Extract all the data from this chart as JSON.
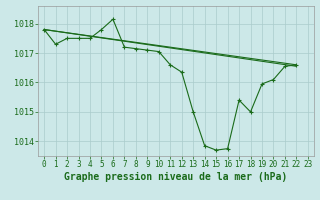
{
  "title": "Graphe pression niveau de la mer (hPa)",
  "bg_color": "#cce8e8",
  "grid_color": "#aacccc",
  "line_color": "#1a6b1a",
  "xlim": [
    -0.5,
    23.5
  ],
  "ylim": [
    1013.5,
    1018.6
  ],
  "yticks": [
    1014,
    1015,
    1016,
    1017,
    1018
  ],
  "xticks": [
    0,
    1,
    2,
    3,
    4,
    5,
    6,
    7,
    8,
    9,
    10,
    11,
    12,
    13,
    14,
    15,
    16,
    17,
    18,
    19,
    20,
    21,
    22,
    23
  ],
  "main_x": [
    0,
    1,
    2,
    3,
    4,
    5,
    6,
    7,
    8,
    9,
    10,
    11,
    12,
    13,
    14,
    15,
    16,
    17,
    18,
    19,
    20,
    21,
    22
  ],
  "main_y": [
    1017.8,
    1017.3,
    1017.5,
    1017.5,
    1017.5,
    1017.8,
    1018.15,
    1017.2,
    1017.15,
    1017.1,
    1017.05,
    1016.6,
    1016.35,
    1015.0,
    1013.85,
    1013.7,
    1013.75,
    1015.4,
    1015.0,
    1015.95,
    1016.1,
    1016.55,
    1016.6
  ],
  "line1_x": [
    0,
    22
  ],
  "line1_y": [
    1017.8,
    1016.6
  ],
  "line2_x": [
    0,
    22
  ],
  "line2_y": [
    1017.8,
    1016.55
  ],
  "title_fontsize": 7,
  "tick_fontsize": 5.5
}
